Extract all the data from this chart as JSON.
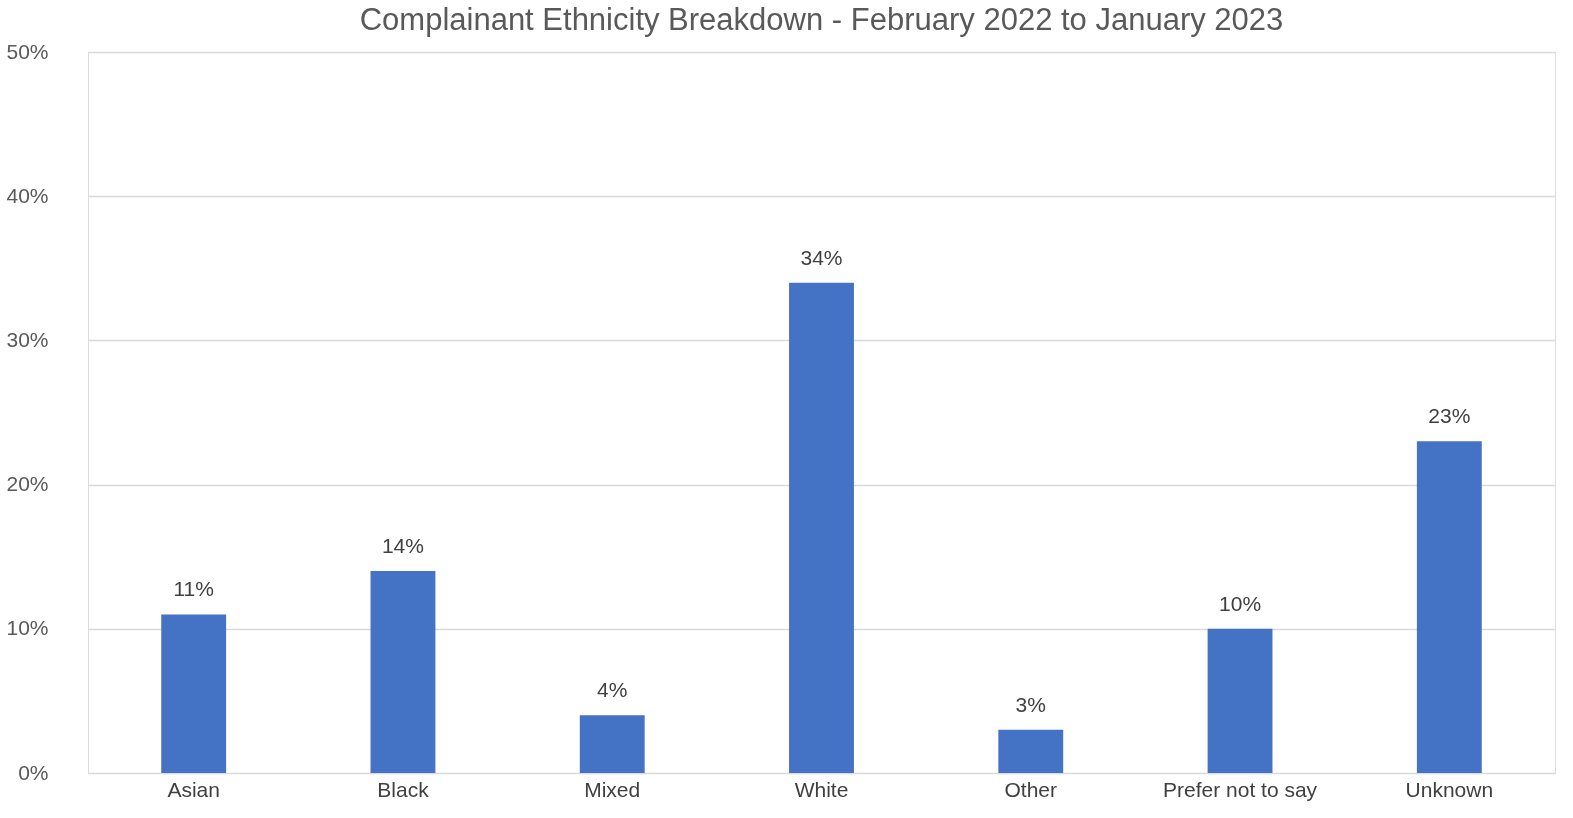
{
  "chart_data": {
    "type": "bar",
    "title": "Complainant Ethnicity Breakdown - February 2022 to January 2023",
    "categories": [
      "Asian",
      "Black",
      "Mixed",
      "White",
      "Other",
      "Prefer not to say",
      "Unknown"
    ],
    "values": [
      11,
      14,
      4,
      34,
      3,
      10,
      23
    ],
    "color": "#4472c4",
    "value_labels": [
      "11%",
      "14%",
      "4%",
      "34%",
      "3%",
      "10%",
      "23%"
    ],
    "ylim": [
      0,
      50
    ],
    "yticks": [
      {
        "value": 0,
        "label": "0%"
      },
      {
        "value": 10,
        "label": "10%"
      },
      {
        "value": 20,
        "label": "20%"
      },
      {
        "value": 30,
        "label": "30%"
      },
      {
        "value": 40,
        "label": "40%"
      },
      {
        "value": 50,
        "label": "50%"
      }
    ],
    "grid": "y"
  }
}
